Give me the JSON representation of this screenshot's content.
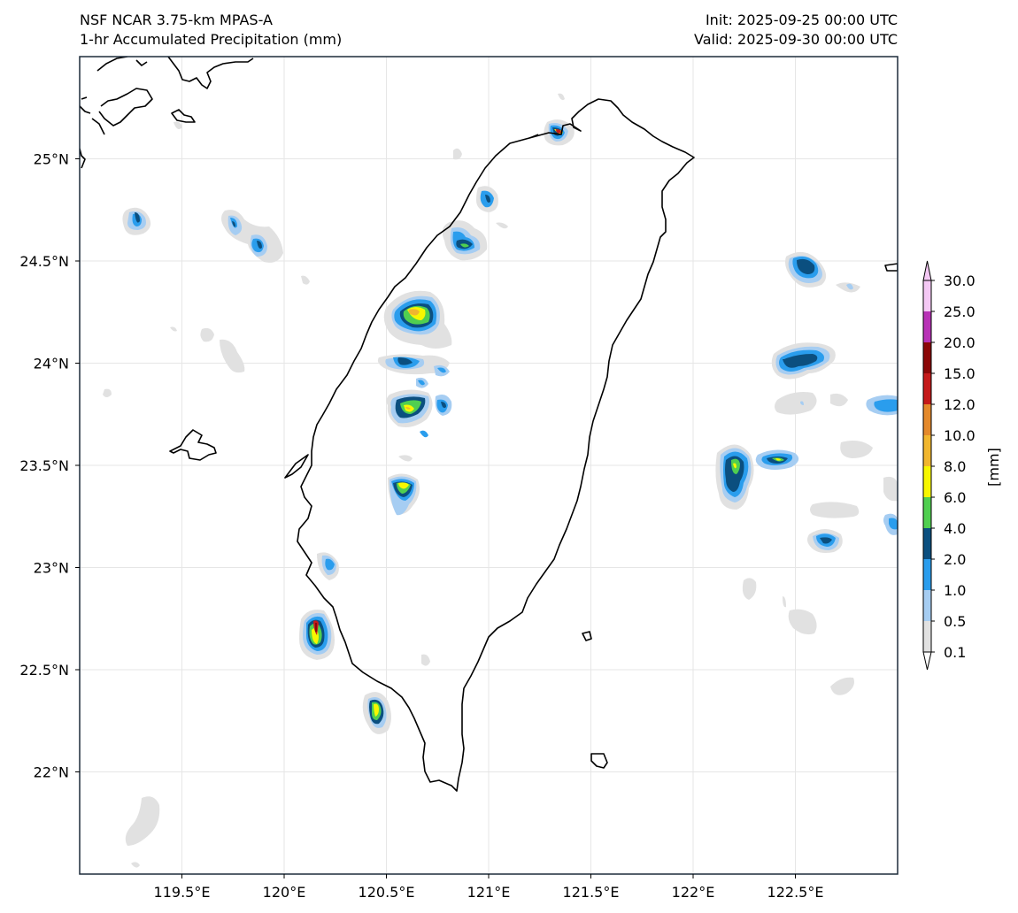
{
  "header": {
    "model": "NSF NCAR 3.75-km MPAS-A",
    "field": "1-hr Accumulated Precipitation (mm)",
    "init": "Init: 2025-09-25 00:00 UTC",
    "valid": "Valid: 2025-09-30 00:00 UTC"
  },
  "map": {
    "lon_range": [
      119.0,
      123.0
    ],
    "lat_range": [
      21.5,
      25.5
    ],
    "lon_ticks": [
      "119.5°E",
      "120°E",
      "120.5°E",
      "121°E",
      "121.5°E",
      "122°E",
      "122.5°E"
    ],
    "lat_ticks": [
      "25°N",
      "24.5°N",
      "24°N",
      "23.5°N",
      "23°N",
      "22.5°N",
      "22°N"
    ],
    "gridlines": true
  },
  "colorbar": {
    "label": "[mm]",
    "levels": [
      "0.1",
      "0.5",
      "1.0",
      "2.0",
      "4.0",
      "6.0",
      "8.0",
      "10.0",
      "12.0",
      "15.0",
      "20.0",
      "25.0",
      "30.0"
    ],
    "colors": [
      "#e1e1e1",
      "#a6cdf2",
      "#2a9ded",
      "#0b4f7f",
      "#50cf50",
      "#f7f700",
      "#f1b62e",
      "#e4892b",
      "#c51a1a",
      "#8b0707",
      "#b832b6",
      "#f4c8f4"
    ],
    "extend": "both"
  }
}
